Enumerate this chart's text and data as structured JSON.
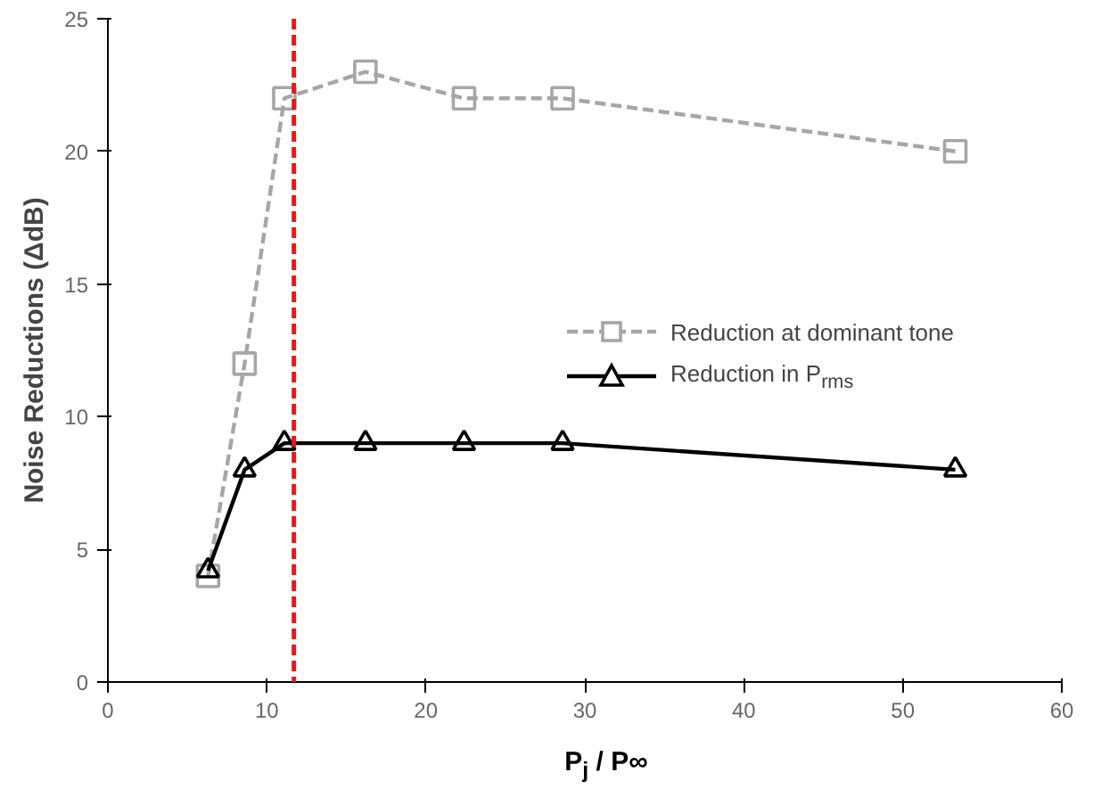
{
  "chart_data": {
    "type": "line",
    "xlabel": "P$_{j}$ / P∞",
    "ylabel": "Noise Reductions (ΔdB)",
    "xlim": [
      0,
      60
    ],
    "ylim": [
      0,
      25
    ],
    "xticks": [
      0,
      10,
      20,
      30,
      40,
      50,
      60
    ],
    "yticks": [
      0,
      5,
      10,
      15,
      20,
      25
    ],
    "grid": false,
    "legend": "right",
    "series": [
      {
        "name": "Reduction at dominant tone",
        "color": "#a6a6a6",
        "marker": "square",
        "line_style": "dashed",
        "x": [
          6.3,
          8.6,
          11.1,
          16.2,
          22.4,
          28.6,
          53.3
        ],
        "values": [
          4,
          12,
          22,
          23,
          22,
          22,
          20
        ]
      },
      {
        "name": "Reduction in P$_{rms}$",
        "color": "#000000",
        "marker": "triangle",
        "line_style": "solid",
        "x": [
          6.3,
          8.6,
          11.1,
          16.2,
          22.4,
          28.6,
          53.3
        ],
        "values": [
          4.2,
          8,
          9,
          9,
          9,
          9,
          8
        ]
      }
    ],
    "ref_lines": [
      {
        "axis": "x",
        "value": 11.7,
        "color": "#e31a1c",
        "line_style": "dashed"
      }
    ]
  }
}
